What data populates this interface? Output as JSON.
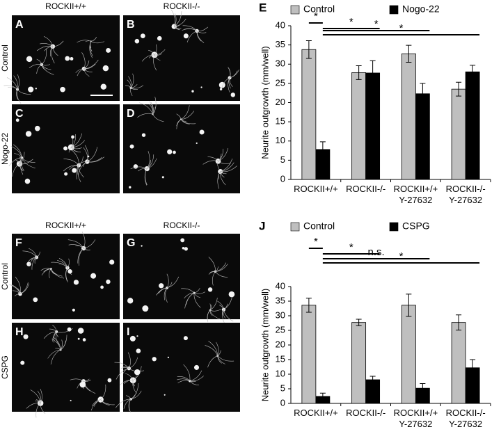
{
  "figure": [
    {
      "columns": [
        "ROCKII+/+",
        "ROCKII-/-"
      ],
      "rows": [
        "Control",
        "Nogo-22"
      ],
      "panels": [
        "A",
        "B",
        "C",
        "D"
      ]
    },
    {
      "columns": [
        "ROCKII+/+",
        "ROCKII-/-"
      ],
      "rows": [
        "Control",
        "CSPG"
      ],
      "panels": [
        "F",
        "G",
        "H",
        "I"
      ]
    }
  ],
  "chart_data": [
    {
      "type": "bar",
      "panel": "E",
      "ylabel": "Neurite outgrowth (mm/well)",
      "categories": [
        "ROCKII+/+",
        "ROCKII-/-",
        "ROCKII+/+\nY-27632",
        "ROCKII-/-\nY-27632"
      ],
      "series": [
        {
          "name": "Control",
          "color": "#bfbfbf",
          "values": [
            33.8,
            27.8,
            32.7,
            23.5
          ],
          "errors": [
            2.3,
            1.8,
            2.2,
            1.8
          ]
        },
        {
          "name": "Nogo-22",
          "color": "#000000",
          "values": [
            7.8,
            27.7,
            22.3,
            28.0
          ],
          "errors": [
            2.0,
            3.2,
            2.7,
            1.7
          ]
        }
      ],
      "ylim": [
        0,
        40
      ],
      "yticks": [
        0,
        5,
        10,
        15,
        20,
        25,
        30,
        35,
        40
      ],
      "annotations": [
        "*",
        "*",
        "*",
        "*"
      ]
    },
    {
      "type": "bar",
      "panel": "J",
      "ylabel": "Neurite outgrowth (mm/well)",
      "categories": [
        "ROCKII+/+",
        "ROCKII-/-",
        "ROCKII+/+\nY-27632",
        "ROCKII-/-\nY-27632"
      ],
      "series": [
        {
          "name": "Control",
          "color": "#bfbfbf",
          "values": [
            33.6,
            27.7,
            33.6,
            27.7
          ],
          "errors": [
            2.4,
            1.1,
            3.8,
            2.6
          ]
        },
        {
          "name": "CSPG",
          "color": "#000000",
          "values": [
            2.4,
            8.1,
            5.2,
            12.2
          ],
          "errors": [
            1.1,
            1.2,
            1.6,
            2.8
          ]
        }
      ],
      "ylim": [
        0,
        40
      ],
      "yticks": [
        0,
        5,
        10,
        15,
        20,
        25,
        30,
        35,
        40
      ],
      "annotations": [
        "*",
        "*",
        "n.s.",
        "*"
      ]
    }
  ]
}
